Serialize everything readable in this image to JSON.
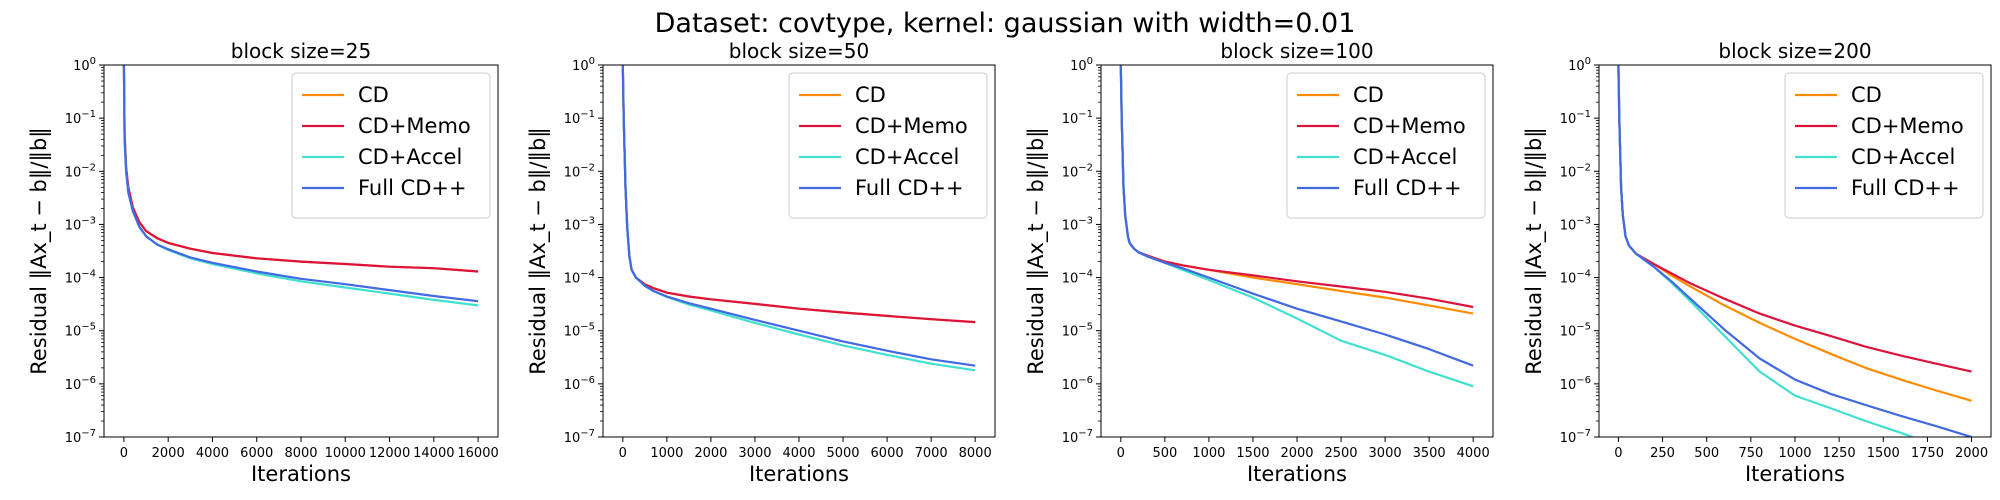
{
  "figure": {
    "title": "Dataset: covtype, kernel: gaussian with width=0.01"
  },
  "colors": {
    "CD": "#ff8c00",
    "CD+Memo": "#dc143c",
    "CD+Accel": "#40e0d0",
    "Full CD++": "#4169e1"
  },
  "chart_data": [
    {
      "type": "line",
      "title": "block size=25",
      "xlabel": "Iterations",
      "ylabel": "Residual ‖Ax_t − b‖/‖b‖",
      "yscale": "log",
      "xlim": [
        -900,
        16900
      ],
      "ylim": [
        1e-07,
        1
      ],
      "xticks": [
        0,
        2000,
        4000,
        6000,
        8000,
        10000,
        12000,
        14000,
        16000
      ],
      "yticks": [
        -7,
        -6,
        -5,
        -4,
        -3,
        -2,
        -1,
        0
      ],
      "legend": "top-right",
      "grid": false,
      "series": [
        {
          "name": "CD",
          "x": [
            0,
            30,
            100,
            200,
            400,
            700,
            1000,
            1500,
            2000,
            3000,
            4000,
            6000,
            8000,
            10000,
            12000,
            14000,
            16000
          ],
          "y": [
            1.0,
            0.05,
            0.012,
            0.005,
            0.0021,
            0.0011,
            0.00075,
            0.00055,
            0.00045,
            0.00035,
            0.00029,
            0.00023,
            0.0002,
            0.00018,
            0.00016,
            0.00015,
            0.00013
          ]
        },
        {
          "name": "CD+Memo",
          "x": [
            0,
            30,
            100,
            200,
            400,
            700,
            1000,
            1500,
            2000,
            3000,
            4000,
            6000,
            8000,
            10000,
            12000,
            14000,
            16000
          ],
          "y": [
            1.0,
            0.05,
            0.012,
            0.005,
            0.0021,
            0.0011,
            0.00075,
            0.00055,
            0.00045,
            0.00035,
            0.00029,
            0.00023,
            0.0002,
            0.00018,
            0.00016,
            0.00015,
            0.00013
          ]
        },
        {
          "name": "CD+Accel",
          "x": [
            0,
            30,
            100,
            200,
            400,
            700,
            1000,
            1500,
            2000,
            3000,
            4000,
            6000,
            8000,
            10000,
            12000,
            14000,
            16000
          ],
          "y": [
            1.0,
            0.04,
            0.01,
            0.004,
            0.0018,
            0.0009,
            0.0006,
            0.00042,
            0.00033,
            0.00023,
            0.00018,
            0.00012,
            8.5e-05,
            6.5e-05,
            5e-05,
            3.8e-05,
            3e-05
          ]
        },
        {
          "name": "Full CD++",
          "x": [
            0,
            30,
            100,
            200,
            400,
            700,
            1000,
            1500,
            2000,
            3000,
            4000,
            6000,
            8000,
            10000,
            12000,
            14000,
            16000
          ],
          "y": [
            1.0,
            0.04,
            0.01,
            0.004,
            0.0018,
            0.0009,
            0.0006,
            0.00042,
            0.00034,
            0.00024,
            0.00019,
            0.00013,
            9.5e-05,
            7.5e-05,
            5.8e-05,
            4.5e-05,
            3.6e-05
          ]
        }
      ]
    },
    {
      "type": "line",
      "title": "block size=50",
      "xlabel": "Iterations",
      "ylabel": "Residual ‖Ax_t − b‖/‖b‖",
      "yscale": "log",
      "xlim": [
        -450,
        8450
      ],
      "ylim": [
        1e-07,
        1
      ],
      "xticks": [
        0,
        1000,
        2000,
        3000,
        4000,
        5000,
        6000,
        7000,
        8000
      ],
      "yticks": [
        -7,
        -6,
        -5,
        -4,
        -3,
        -2,
        -1,
        0
      ],
      "legend": "top-right",
      "grid": false,
      "series": [
        {
          "name": "CD",
          "x": [
            0,
            20,
            60,
            100,
            150,
            200,
            300,
            500,
            700,
            1000,
            1500,
            2000,
            3000,
            4000,
            5000,
            6000,
            7000,
            8000
          ],
          "y": [
            1.0,
            0.1,
            0.005,
            0.0009,
            0.00025,
            0.00014,
            0.0001,
            7.5e-05,
            6.3e-05,
            5.2e-05,
            4.4e-05,
            3.9e-05,
            3.2e-05,
            2.6e-05,
            2.2e-05,
            1.9e-05,
            1.65e-05,
            1.45e-05
          ]
        },
        {
          "name": "CD+Memo",
          "x": [
            0,
            20,
            60,
            100,
            150,
            200,
            300,
            500,
            700,
            1000,
            1500,
            2000,
            3000,
            4000,
            5000,
            6000,
            7000,
            8000
          ],
          "y": [
            1.0,
            0.1,
            0.005,
            0.0009,
            0.00025,
            0.00014,
            0.0001,
            7.5e-05,
            6.3e-05,
            5.2e-05,
            4.4e-05,
            3.9e-05,
            3.2e-05,
            2.6e-05,
            2.2e-05,
            1.9e-05,
            1.65e-05,
            1.45e-05
          ]
        },
        {
          "name": "CD+Accel",
          "x": [
            0,
            20,
            60,
            100,
            150,
            200,
            300,
            500,
            700,
            1000,
            1500,
            2000,
            3000,
            4000,
            5000,
            6000,
            7000,
            8000
          ],
          "y": [
            1.0,
            0.1,
            0.005,
            0.0009,
            0.00025,
            0.00014,
            0.0001,
            7e-05,
            5.5e-05,
            4.3e-05,
            3.1e-05,
            2.4e-05,
            1.4e-05,
            8.5e-06,
            5.3e-06,
            3.5e-06,
            2.4e-06,
            1.8e-06
          ]
        },
        {
          "name": "Full CD++",
          "x": [
            0,
            20,
            60,
            100,
            150,
            200,
            300,
            500,
            700,
            1000,
            1500,
            2000,
            3000,
            4000,
            5000,
            6000,
            7000,
            8000
          ],
          "y": [
            1.0,
            0.1,
            0.005,
            0.0009,
            0.00025,
            0.00014,
            0.0001,
            7e-05,
            5.6e-05,
            4.4e-05,
            3.3e-05,
            2.6e-05,
            1.6e-05,
            1e-05,
            6.3e-06,
            4.2e-06,
            2.9e-06,
            2.2e-06
          ]
        }
      ]
    },
    {
      "type": "line",
      "title": "block size=100",
      "xlabel": "Iterations",
      "ylabel": "Residual ‖Ax_t − b‖/‖b‖",
      "yscale": "log",
      "xlim": [
        -225,
        4225
      ],
      "ylim": [
        1e-07,
        1
      ],
      "xticks": [
        0,
        500,
        1000,
        1500,
        2000,
        2500,
        3000,
        3500,
        4000
      ],
      "yticks": [
        -7,
        -6,
        -5,
        -4,
        -3,
        -2,
        -1,
        0
      ],
      "legend": "top-right",
      "grid": false,
      "series": [
        {
          "name": "CD",
          "x": [
            0,
            10,
            30,
            50,
            80,
            100,
            150,
            200,
            300,
            500,
            700,
            1000,
            1500,
            2000,
            2500,
            3000,
            3500,
            4000
          ],
          "y": [
            1.0,
            0.1,
            0.005,
            0.0015,
            0.0006,
            0.00045,
            0.00035,
            0.0003,
            0.00026,
            0.0002,
            0.00017,
            0.00014,
            0.0001,
            7.5e-05,
            5.6e-05,
            4.2e-05,
            3e-05,
            2.1e-05
          ]
        },
        {
          "name": "CD+Memo",
          "x": [
            0,
            10,
            30,
            50,
            80,
            100,
            150,
            200,
            300,
            500,
            700,
            1000,
            1500,
            2000,
            2500,
            3000,
            3500,
            4000
          ],
          "y": [
            1.0,
            0.1,
            0.005,
            0.0015,
            0.0006,
            0.00045,
            0.00035,
            0.0003,
            0.00026,
            0.0002,
            0.00017,
            0.00014,
            0.00011,
            8.5e-05,
            6.8e-05,
            5.4e-05,
            4e-05,
            2.8e-05
          ]
        },
        {
          "name": "CD+Accel",
          "x": [
            0,
            10,
            30,
            50,
            80,
            100,
            150,
            200,
            300,
            500,
            700,
            1000,
            1500,
            2000,
            2500,
            3000,
            3500,
            4000
          ],
          "y": [
            1.0,
            0.1,
            0.005,
            0.0015,
            0.0006,
            0.00045,
            0.00035,
            0.0003,
            0.00025,
            0.00019,
            0.00014,
            9e-05,
            4.2e-05,
            1.7e-05,
            6.5e-06,
            3.5e-06,
            1.7e-06,
            9e-07
          ]
        },
        {
          "name": "Full CD++",
          "x": [
            0,
            10,
            30,
            50,
            80,
            100,
            150,
            200,
            300,
            500,
            700,
            1000,
            1500,
            2000,
            2500,
            3000,
            3500,
            4000
          ],
          "y": [
            1.0,
            0.1,
            0.005,
            0.0015,
            0.0006,
            0.00045,
            0.00035,
            0.0003,
            0.00025,
            0.00019,
            0.00015,
            0.0001,
            5e-05,
            2.6e-05,
            1.5e-05,
            8.5e-06,
            4.5e-06,
            2.2e-06
          ]
        }
      ]
    },
    {
      "type": "line",
      "title": "block size=200",
      "xlabel": "Iterations",
      "ylabel": "Residual ‖Ax_t − b‖/‖b‖",
      "yscale": "log",
      "xlim": [
        -110,
        2110
      ],
      "ylim": [
        1e-07,
        1
      ],
      "xticks": [
        0,
        250,
        500,
        750,
        1000,
        1250,
        1500,
        1750,
        2000
      ],
      "yticks": [
        -7,
        -6,
        -5,
        -4,
        -3,
        -2,
        -1,
        0
      ],
      "legend": "top-right",
      "grid": false,
      "series": [
        {
          "name": "CD",
          "x": [
            0,
            5,
            15,
            25,
            40,
            60,
            100,
            200,
            300,
            400,
            600,
            800,
            1000,
            1200,
            1400,
            1600,
            1800,
            2000
          ],
          "y": [
            1.0,
            0.1,
            0.005,
            0.0015,
            0.0006,
            0.0004,
            0.00028,
            0.00018,
            0.00011,
            7e-05,
            3e-05,
            1.4e-05,
            7e-06,
            3.7e-06,
            2e-06,
            1.2e-06,
            7.5e-07,
            4.8e-07
          ]
        },
        {
          "name": "CD+Memo",
          "x": [
            0,
            5,
            15,
            25,
            40,
            60,
            100,
            200,
            300,
            400,
            600,
            800,
            1000,
            1200,
            1400,
            1600,
            1800,
            2000
          ],
          "y": [
            1.0,
            0.1,
            0.005,
            0.0015,
            0.0006,
            0.0004,
            0.00028,
            0.00018,
            0.00012,
            8e-05,
            4e-05,
            2.1e-05,
            1.25e-05,
            8e-06,
            5e-06,
            3.4e-06,
            2.4e-06,
            1.7e-06
          ]
        },
        {
          "name": "CD+Accel",
          "x": [
            0,
            5,
            15,
            25,
            40,
            60,
            100,
            200,
            300,
            400,
            600,
            800,
            1000,
            1200,
            1400,
            1600,
            1700
          ],
          "y": [
            1.0,
            0.1,
            0.005,
            0.0015,
            0.0006,
            0.0004,
            0.00028,
            0.00016,
            8e-05,
            3.8e-05,
            8e-06,
            1.7e-06,
            6e-07,
            3.5e-07,
            2e-07,
            1.2e-07,
            9e-08
          ]
        },
        {
          "name": "Full CD++",
          "x": [
            0,
            5,
            15,
            25,
            40,
            60,
            100,
            200,
            300,
            400,
            600,
            800,
            1000,
            1200,
            1400,
            1600,
            1800,
            2000
          ],
          "y": [
            1.0,
            0.1,
            0.005,
            0.0015,
            0.0006,
            0.0004,
            0.00028,
            0.00016,
            8.5e-05,
            4.2e-05,
            1.05e-05,
            3e-06,
            1.2e-06,
            6.5e-07,
            4e-07,
            2.5e-07,
            1.6e-07,
            1e-07
          ]
        }
      ]
    }
  ]
}
